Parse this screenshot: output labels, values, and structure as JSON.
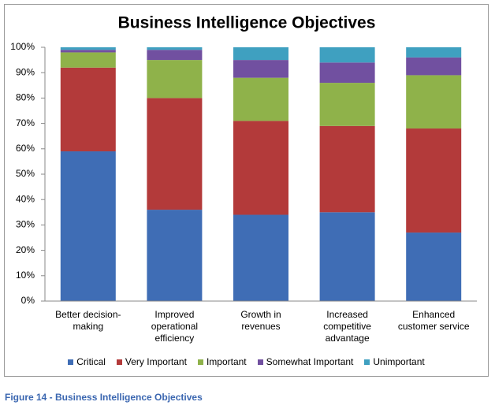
{
  "chart_data": {
    "type": "stacked_bar",
    "title": "Business Intelligence Objectives",
    "caption": "Figure 14 - Business Intelligence Objectives",
    "categories": [
      "Better decision-making",
      "Improved operational efficiency",
      "Growth in revenues",
      "Increased competitive advantage",
      "Enhanced customer service"
    ],
    "series": [
      {
        "name": "Critical",
        "color": "#3f6db5",
        "values": [
          59,
          36,
          34,
          35,
          27
        ]
      },
      {
        "name": "Very Important",
        "color": "#b33a3a",
        "values": [
          33,
          44,
          37,
          34,
          41
        ]
      },
      {
        "name": "Important",
        "color": "#8fb24a",
        "values": [
          6,
          15,
          17,
          17,
          21
        ]
      },
      {
        "name": "Somewhat Important",
        "color": "#7150a0",
        "values": [
          1,
          4,
          7,
          8,
          7
        ]
      },
      {
        "name": "Unimportant",
        "color": "#3fa0c0",
        "values": [
          1,
          1,
          5,
          6,
          4
        ]
      }
    ],
    "ylim": [
      0,
      100
    ],
    "yticks": [
      {
        "value": 0,
        "label": "0%"
      },
      {
        "value": 10,
        "label": "10%"
      },
      {
        "value": 20,
        "label": "20%"
      },
      {
        "value": 30,
        "label": "30%"
      },
      {
        "value": 40,
        "label": "40%"
      },
      {
        "value": 50,
        "label": "50%"
      },
      {
        "value": 60,
        "label": "60%"
      },
      {
        "value": 70,
        "label": "70%"
      },
      {
        "value": 80,
        "label": "80%"
      },
      {
        "value": 90,
        "label": "90%"
      },
      {
        "value": 100,
        "label": "100%"
      }
    ],
    "grid": false,
    "legend": "bottom"
  }
}
